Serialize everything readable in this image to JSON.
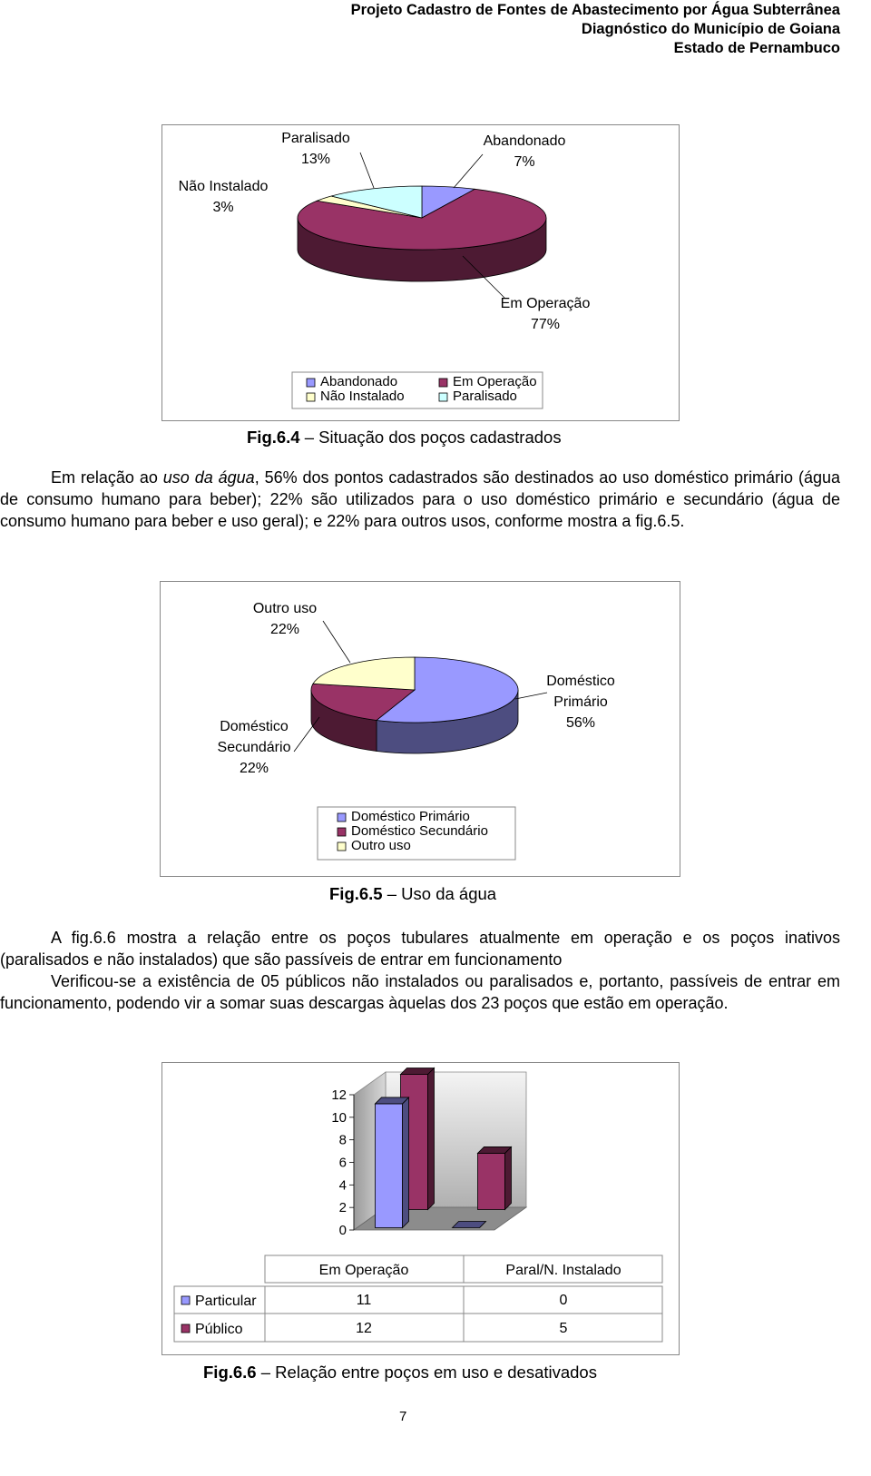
{
  "header": [
    "Projeto Cadastro de Fontes de Abastecimento por Água Subterrânea",
    "Diagnóstico do Município de Goiana",
    "Estado de Pernambuco"
  ],
  "chart_data": [
    {
      "type": "pie",
      "categories": [
        "Abandonado",
        "Em Operação",
        "Não Instalado",
        "Paralisado"
      ],
      "values": [
        7,
        77,
        3,
        13
      ],
      "value_labels": [
        "7%",
        "77%",
        "3%",
        "13%"
      ],
      "colors": [
        "#9999ff",
        "#993366",
        "#ffffcc",
        "#ccffff"
      ]
    },
    {
      "type": "pie",
      "categories": [
        "Doméstico Primário",
        "Doméstico Secundário",
        "Outro uso"
      ],
      "values": [
        56,
        22,
        22
      ],
      "value_labels": [
        "56%",
        "22%",
        "22%"
      ],
      "colors": [
        "#9999ff",
        "#993366",
        "#ffffcc"
      ]
    },
    {
      "type": "bar",
      "categories": [
        "Em Operação",
        "Paral/N. Instalado"
      ],
      "series": [
        {
          "name": "Particular",
          "color": "#9999ff",
          "values": [
            11,
            0
          ]
        },
        {
          "name": "Público",
          "color": "#993366",
          "values": [
            12,
            5
          ]
        }
      ],
      "ylim": [
        0,
        12
      ],
      "yticks": [
        0,
        2,
        4,
        6,
        8,
        10,
        12
      ]
    }
  ],
  "captions": [
    {
      "label": "Fig.6.4",
      "text": "– Situação dos poços cadastrados"
    },
    {
      "label": "Fig.6.5",
      "text": "– Uso da água"
    },
    {
      "label": "Fig.6.6",
      "text": "– Relação entre poços em uso e desativados"
    }
  ],
  "paragraphs": [
    [
      "Em relação ao ",
      "uso da água",
      ", 56% dos pontos cadastrados são destinados ao uso doméstico primário (água de consumo humano para beber); 22% são utilizados para o uso doméstico primário e secundário (água de consumo humano para beber e uso geral); e 22% para outros usos, conforme mostra a fig.6.5."
    ],
    [
      "A fig.6.6 mostra a relação entre os poços tubulares atualmente em operação e os poços inativos (paralisados e não instalados) que são passíveis de entrar em funcionamento"
    ],
    [
      "Verificou-se a existência de 05 públicos não instalados ou paralisados e, portanto, passíveis de entrar em funcionamento, podendo vir a somar suas descargas àquelas dos 23 poços que estão em operação."
    ]
  ],
  "page_number": "7"
}
